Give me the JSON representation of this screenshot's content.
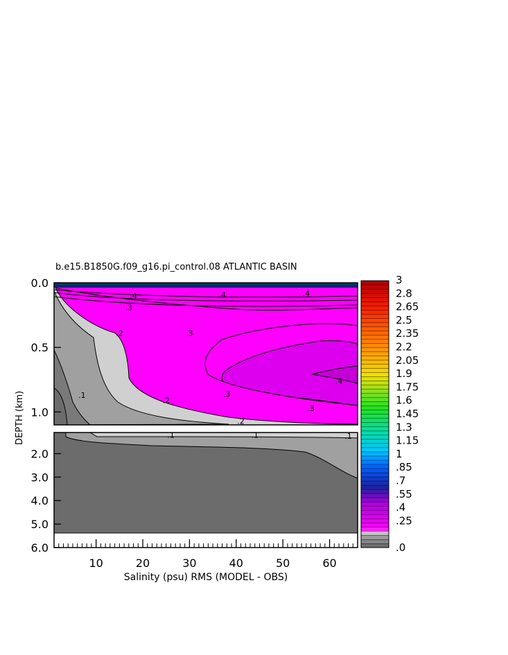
{
  "chart_data": {
    "type": "heatmap",
    "title": "b.e15.B1850G.f09_g16.pi_control.08 ATLANTIC BASIN",
    "xlabel": "Salinity (psu) RMS (MODEL - OBS)",
    "ylabel": "DEPTH (km)",
    "x_range": [
      1,
      66
    ],
    "xticks": [
      10,
      20,
      30,
      40,
      50,
      60
    ],
    "upper_panel": {
      "depth_range_km": [
        0.0,
        1.1
      ],
      "yticks": [
        "0.0",
        "0.5",
        "1.0"
      ]
    },
    "lower_panel": {
      "depth_range_km": [
        1.1,
        6.0
      ],
      "yticks": [
        "2.0",
        "3.0",
        "4.0",
        "5.0",
        "6.0"
      ]
    },
    "colorbar": {
      "labels": [
        "3",
        "2.8",
        "2.65",
        "2.5",
        "2.35",
        "2.2",
        "2.05",
        "1.9",
        "1.75",
        "1.6",
        "1.45",
        "1.3",
        "1.15",
        "1",
        ".85",
        ".7",
        ".55",
        ".4",
        ".25",
        ".0"
      ]
    },
    "contour_labels": [
      {
        "text": ".4",
        "x": 18,
        "depth": 0.1
      },
      {
        "text": ".4",
        "x": 37,
        "depth": 0.09
      },
      {
        "text": ".4",
        "x": 55,
        "depth": 0.08
      },
      {
        "text": ".3",
        "x": 17,
        "depth": 0.19
      },
      {
        "text": ".3",
        "x": 30,
        "depth": 0.39
      },
      {
        "text": ".2",
        "x": 15,
        "depth": 0.39
      },
      {
        "text": ".4",
        "x": 62,
        "depth": 0.76
      },
      {
        "text": ".3",
        "x": 38,
        "depth": 0.86
      },
      {
        "text": ".3",
        "x": 56,
        "depth": 0.97
      },
      {
        "text": ".2",
        "x": 25,
        "depth": 0.91
      },
      {
        "text": ".2",
        "x": 41,
        "depth": 1.07
      },
      {
        "text": ".1",
        "x": 7,
        "depth": 0.87
      },
      {
        "text": ".1",
        "x": 26,
        "depth": 1.21
      },
      {
        "text": ".1",
        "x": 44,
        "depth": 1.21
      },
      {
        "text": ".1",
        "x": 64,
        "depth": 1.25
      }
    ]
  },
  "colors": {
    "magenta": "#ff00ff",
    "magenta_mid": "#dd00ee",
    "magenta_dark": "#c400d6",
    "gray_light": "#d0d0d0",
    "gray_mid": "#a0a0a0",
    "gray_dark": "#7a7a7a",
    "gray_darker": "#6c6c6c"
  }
}
